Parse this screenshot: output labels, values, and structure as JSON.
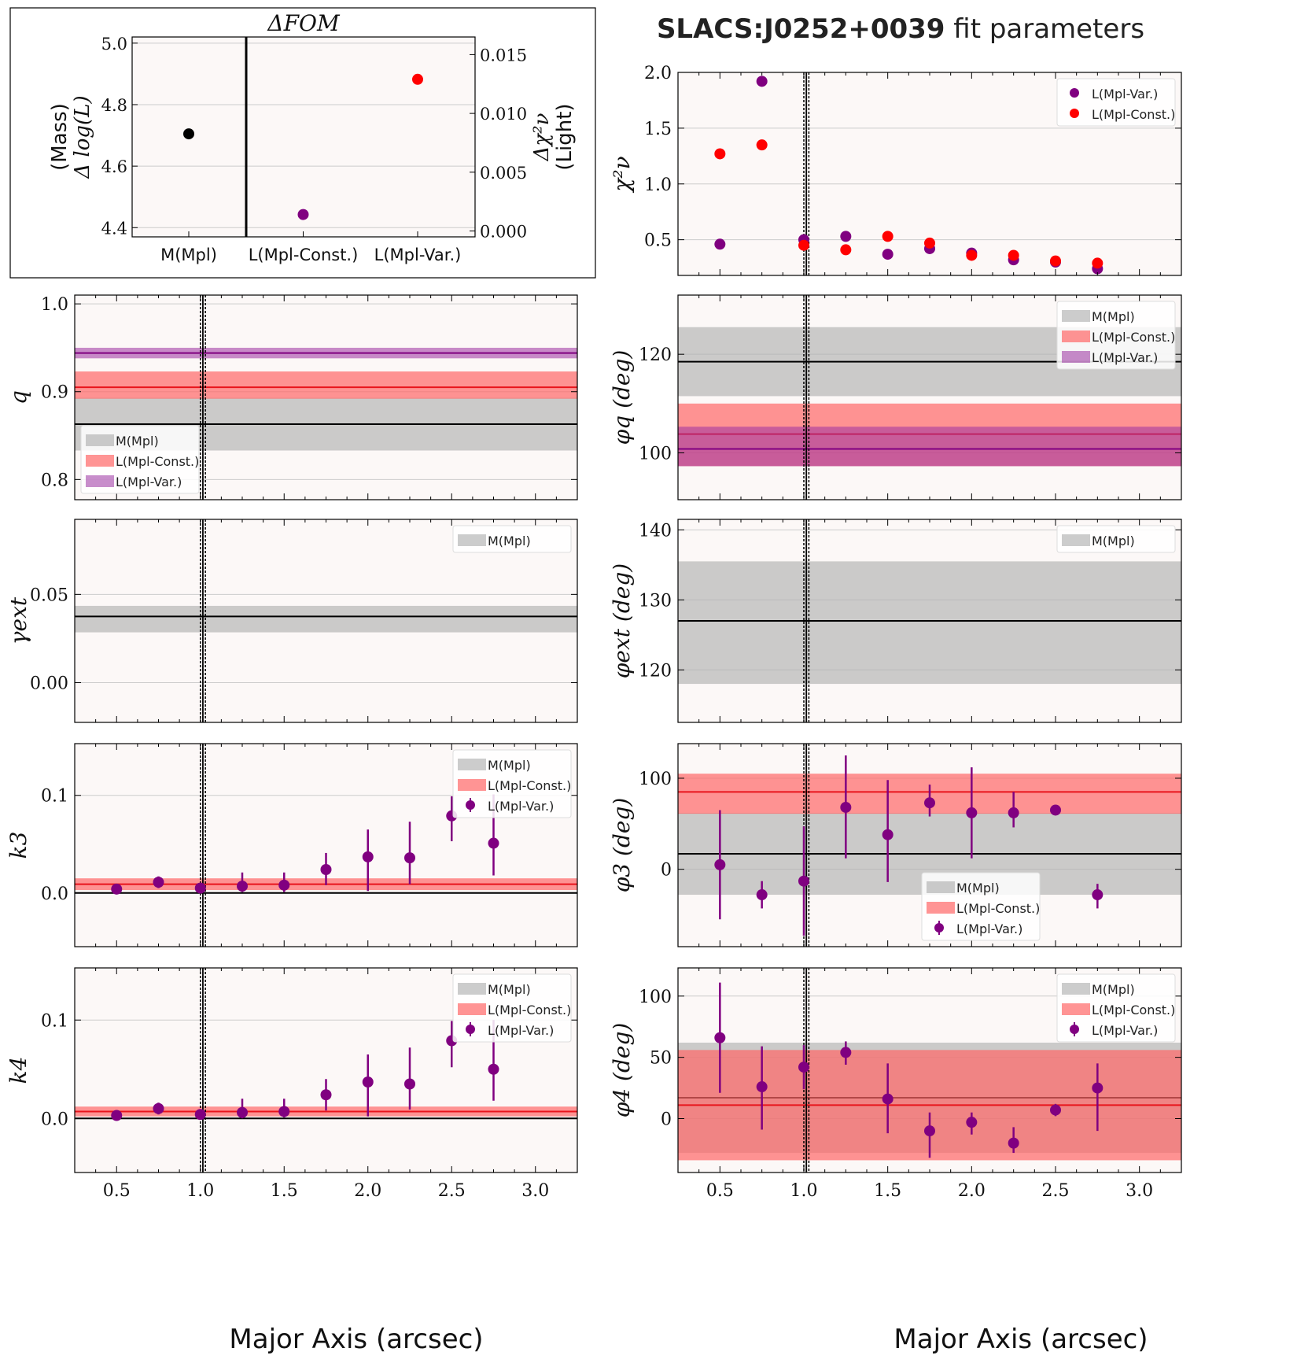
{
  "figure": {
    "title_bold": "SLACS:J0252+0039",
    "title_rest": " fit parameters",
    "xlabel": "Major Axis (arcsec)"
  },
  "colors": {
    "mass": "#b0b0b0",
    "mass_line": "#000000",
    "const": "#ff6666",
    "const_line": "#e8141c",
    "var": "#9b30a0",
    "var_line": "#800080",
    "var_point": "#800080",
    "const_point": "#ff0000",
    "panel_bg": "#fcf8f7",
    "grid": "#cccccc"
  },
  "chart_data": [
    {
      "id": "dfom",
      "type": "scatter",
      "title": "ΔFOM",
      "ylabel_left": [
        "(Mass)",
        "Δ log(L)"
      ],
      "ylabel_right": [
        "Δχ²ν",
        "(Light)"
      ],
      "categories": [
        "M(Mpl)",
        "L(Mpl-Const.)",
        "L(Mpl-Var.)"
      ],
      "ylim_left": [
        4.37,
        5.02
      ],
      "yticks_left": [
        "4.4",
        "4.6",
        "4.8",
        "5.0"
      ],
      "ylim_right": [
        -0.0005,
        0.0165
      ],
      "yticks_right": [
        "0.000",
        "0.005",
        "0.010",
        "0.015"
      ],
      "points": [
        {
          "category": "M(Mpl)",
          "axis": "left",
          "value": 4.705,
          "color": "#000000"
        },
        {
          "category": "L(Mpl-Const.)",
          "axis": "right",
          "value": 0.0014,
          "color": "#800080"
        },
        {
          "category": "L(Mpl-Var.)",
          "axis": "right",
          "value": 0.0129,
          "color": "#ff0000"
        }
      ]
    },
    {
      "id": "chi2",
      "type": "scatter",
      "ylabel": "χ²ν",
      "ylim": [
        0.18,
        2.0
      ],
      "yticks": [
        "0.5",
        "1.0",
        "1.5",
        "2.0"
      ],
      "legend": {
        "position": "top-right",
        "entries": [
          "L(Mpl-Var.)",
          "L(Mpl-Const.)"
        ]
      },
      "series": [
        {
          "name": "L(Mpl-Var.)",
          "x": [
            0.5,
            0.75,
            1.0,
            1.25,
            1.5,
            1.75,
            2.0,
            2.25,
            2.5,
            2.75
          ],
          "y": [
            0.46,
            1.92,
            0.5,
            0.53,
            0.37,
            0.42,
            0.38,
            0.32,
            0.3,
            0.24
          ]
        },
        {
          "name": "L(Mpl-Const.)",
          "x": [
            0.5,
            0.75,
            1.0,
            1.25,
            1.5,
            1.75,
            2.0,
            2.25,
            2.5,
            2.75
          ],
          "y": [
            1.27,
            1.35,
            0.45,
            0.41,
            0.53,
            0.47,
            0.36,
            0.36,
            0.31,
            0.29
          ]
        }
      ]
    },
    {
      "id": "q",
      "type": "band",
      "ylabel": "q",
      "ylim": [
        0.777,
        1.01
      ],
      "yticks": [
        "0.8",
        "0.9",
        "1.0"
      ],
      "legend": {
        "position": "bottom-left",
        "entries": [
          "M(Mpl)",
          "L(Mpl-Const.)",
          "L(Mpl-Var.)"
        ]
      },
      "bands": [
        {
          "name": "M(Mpl)",
          "center": 0.863,
          "low": 0.833,
          "high": 0.893
        },
        {
          "name": "L(Mpl-Const.)",
          "center": 0.905,
          "low": 0.892,
          "high": 0.923
        },
        {
          "name": "L(Mpl-Var.)",
          "center": 0.944,
          "low": 0.938,
          "high": 0.95
        }
      ]
    },
    {
      "id": "phiq",
      "type": "band",
      "ylabel": "φq (deg)",
      "ylim": [
        90.5,
        132
      ],
      "yticks": [
        "100",
        "120"
      ],
      "legend": {
        "position": "top-right",
        "entries": [
          "M(Mpl)",
          "L(Mpl-Const.)",
          "L(Mpl-Var.)"
        ]
      },
      "bands": [
        {
          "name": "M(Mpl)",
          "center": 118.5,
          "low": 111.5,
          "high": 125.5
        },
        {
          "name": "L(Mpl-Const.)",
          "center": 103.8,
          "low": 97.3,
          "high": 110.0
        },
        {
          "name": "L(Mpl-Var.)",
          "center": 100.8,
          "low": 97.3,
          "high": 105.3
        }
      ]
    },
    {
      "id": "gamma",
      "type": "band",
      "ylabel": "γext",
      "ylim": [
        -0.0225,
        0.0925
      ],
      "yticks": [
        "0.00",
        "0.05"
      ],
      "legend": {
        "position": "top-right",
        "entries": [
          "M(Mpl)"
        ]
      },
      "bands": [
        {
          "name": "M(Mpl)",
          "center": 0.0375,
          "low": 0.0285,
          "high": 0.0435
        }
      ]
    },
    {
      "id": "phiext",
      "type": "band",
      "ylabel": "φext (deg)",
      "ylim": [
        112.5,
        141.5
      ],
      "yticks": [
        "120",
        "130",
        "140"
      ],
      "legend": {
        "position": "top-right",
        "entries": [
          "M(Mpl)"
        ]
      },
      "bands": [
        {
          "name": "M(Mpl)",
          "center": 127.0,
          "low": 118.0,
          "high": 135.5
        }
      ]
    },
    {
      "id": "k3",
      "type": "errorbar",
      "ylabel": "k3",
      "ylim": [
        -0.055,
        0.153
      ],
      "yticks": [
        "0.0",
        "0.1"
      ],
      "legend": {
        "position": "top-right",
        "entries": [
          "M(Mpl)",
          "L(Mpl-Const.)",
          "L(Mpl-Var.)"
        ]
      },
      "bands": [
        {
          "name": "M(Mpl)",
          "center": 0.0,
          "low": -0.0008,
          "high": 0.0008
        },
        {
          "name": "L(Mpl-Const.)",
          "center": 0.009,
          "low": 0.003,
          "high": 0.015
        }
      ],
      "points": {
        "name": "L(Mpl-Var.)",
        "x": [
          0.5,
          0.75,
          1.0,
          1.25,
          1.5,
          1.75,
          2.0,
          2.25,
          2.5,
          2.75
        ],
        "y": [
          0.004,
          0.011,
          0.005,
          0.007,
          0.008,
          0.024,
          0.037,
          0.036,
          0.079,
          0.051
        ],
        "yerr_low": [
          0.003,
          0.006,
          0.004,
          0.006,
          0.007,
          0.016,
          0.035,
          0.027,
          0.026,
          0.033
        ],
        "yerr_high": [
          0.003,
          0.006,
          0.004,
          0.014,
          0.013,
          0.017,
          0.028,
          0.037,
          0.02,
          0.05
        ]
      }
    },
    {
      "id": "phi3",
      "type": "errorbar",
      "ylabel": "φ3 (deg)",
      "ylim": [
        -85,
        138
      ],
      "yticks": [
        "0",
        "100"
      ],
      "legend": {
        "position": "bottom-center",
        "entries": [
          "M(Mpl)",
          "L(Mpl-Const.)",
          "L(Mpl-Var.)"
        ]
      },
      "bands": [
        {
          "name": "M(Mpl)",
          "center": 17,
          "low": -28,
          "high": 62
        },
        {
          "name": "L(Mpl-Const.)",
          "center": 85,
          "low": 61,
          "high": 105
        }
      ],
      "points": {
        "name": "L(Mpl-Var.)",
        "x": [
          0.5,
          0.75,
          1.0,
          1.25,
          1.5,
          1.75,
          2.0,
          2.25,
          2.5,
          2.75
        ],
        "y": [
          5,
          -28,
          -13,
          68,
          38,
          73,
          62,
          62,
          65,
          -28
        ],
        "yerr_low": [
          60,
          15,
          60,
          56,
          52,
          15,
          50,
          16,
          3,
          15
        ],
        "yerr_high": [
          60,
          15,
          60,
          57,
          60,
          20,
          50,
          23,
          3,
          12
        ]
      }
    },
    {
      "id": "k4",
      "type": "errorbar",
      "ylabel": "k4",
      "ylim": [
        -0.055,
        0.153
      ],
      "yticks": [
        "0.0",
        "0.1"
      ],
      "legend": {
        "position": "top-right",
        "entries": [
          "M(Mpl)",
          "L(Mpl-Const.)",
          "L(Mpl-Var.)"
        ]
      },
      "bands": [
        {
          "name": "M(Mpl)",
          "center": 0.0,
          "low": -0.0008,
          "high": 0.0008
        },
        {
          "name": "L(Mpl-Const.)",
          "center": 0.007,
          "low": 0.002,
          "high": 0.012
        }
      ],
      "points": {
        "name": "L(Mpl-Var.)",
        "x": [
          0.5,
          0.75,
          1.0,
          1.25,
          1.5,
          1.75,
          2.0,
          2.25,
          2.5,
          2.75
        ],
        "y": [
          0.003,
          0.01,
          0.004,
          0.006,
          0.007,
          0.024,
          0.037,
          0.035,
          0.079,
          0.05
        ],
        "yerr_low": [
          0.003,
          0.006,
          0.003,
          0.006,
          0.006,
          0.016,
          0.035,
          0.026,
          0.027,
          0.032
        ],
        "yerr_high": [
          0.003,
          0.006,
          0.003,
          0.014,
          0.013,
          0.016,
          0.028,
          0.037,
          0.02,
          0.05
        ]
      }
    },
    {
      "id": "phi4",
      "type": "errorbar",
      "ylabel": "φ4 (deg)",
      "ylim": [
        -44,
        123
      ],
      "yticks": [
        "0",
        "50",
        "100"
      ],
      "legend": {
        "position": "top-right",
        "entries": [
          "M(Mpl)",
          "L(Mpl-Const.)",
          "L(Mpl-Var.)"
        ]
      },
      "bands": [
        {
          "name": "M(Mpl)",
          "center": 17,
          "low": -28,
          "high": 62
        },
        {
          "name": "L(Mpl-Const.)",
          "center": 11,
          "low": -34,
          "high": 56
        }
      ],
      "points": {
        "name": "L(Mpl-Var.)",
        "x": [
          0.5,
          0.75,
          1.0,
          1.25,
          1.5,
          1.75,
          2.0,
          2.25,
          2.5,
          2.75
        ],
        "y": [
          66,
          26,
          42,
          54,
          16,
          -10,
          -3,
          -20,
          7,
          25
        ],
        "yerr_low": [
          45,
          35,
          18,
          10,
          28,
          22,
          10,
          8,
          5,
          35
        ],
        "yerr_high": [
          45,
          33,
          18,
          9,
          29,
          15,
          8,
          13,
          5,
          20
        ]
      }
    }
  ]
}
